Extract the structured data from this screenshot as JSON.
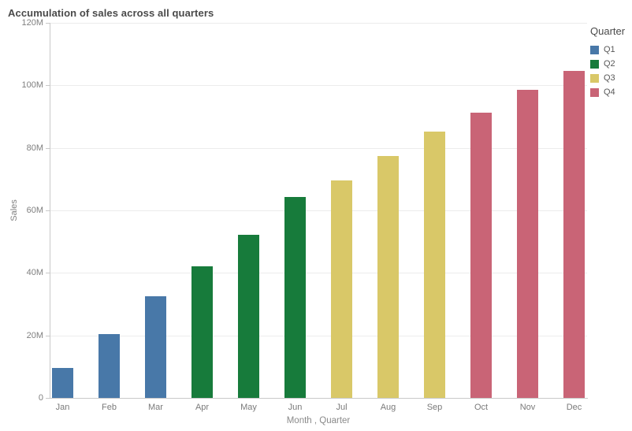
{
  "chart_data": {
    "type": "bar",
    "title": "Accumulation of sales across all quarters",
    "xlabel": "Month , Quarter",
    "ylabel": "Sales",
    "ylim_millions": [
      0,
      120
    ],
    "grid": "horizontal",
    "legend_position": "top-right",
    "yticks": [
      {
        "label": "0",
        "m": 0
      },
      {
        "label": "20M",
        "m": 20
      },
      {
        "label": "40M",
        "m": 40
      },
      {
        "label": "60M",
        "m": 60
      },
      {
        "label": "80M",
        "m": 80
      },
      {
        "label": "100M",
        "m": 100
      },
      {
        "label": "120M",
        "m": 120
      }
    ],
    "legend": {
      "title": "Quarter",
      "entries": [
        {
          "label": "Q1",
          "color": "#4878a8"
        },
        {
          "label": "Q2",
          "color": "#177b3b"
        },
        {
          "label": "Q3",
          "color": "#d9c868"
        },
        {
          "label": "Q4",
          "color": "#c96476"
        }
      ]
    },
    "bars": [
      {
        "month": "Jan",
        "quarter": "Q1",
        "value_millions": 9.7
      },
      {
        "month": "Feb",
        "quarter": "Q1",
        "value_millions": 20.4
      },
      {
        "month": "Mar",
        "quarter": "Q1",
        "value_millions": 32.4
      },
      {
        "month": "Apr",
        "quarter": "Q2",
        "value_millions": 42.1
      },
      {
        "month": "May",
        "quarter": "Q2",
        "value_millions": 52.2
      },
      {
        "month": "Jun",
        "quarter": "Q2",
        "value_millions": 64.3
      },
      {
        "month": "Jul",
        "quarter": "Q3",
        "value_millions": 69.6
      },
      {
        "month": "Aug",
        "quarter": "Q3",
        "value_millions": 77.5
      },
      {
        "month": "Sep",
        "quarter": "Q3",
        "value_millions": 85.1
      },
      {
        "month": "Oct",
        "quarter": "Q4",
        "value_millions": 91.3
      },
      {
        "month": "Nov",
        "quarter": "Q4",
        "value_millions": 98.6
      },
      {
        "month": "Dec",
        "quarter": "Q4",
        "value_millions": 104.5
      }
    ]
  }
}
